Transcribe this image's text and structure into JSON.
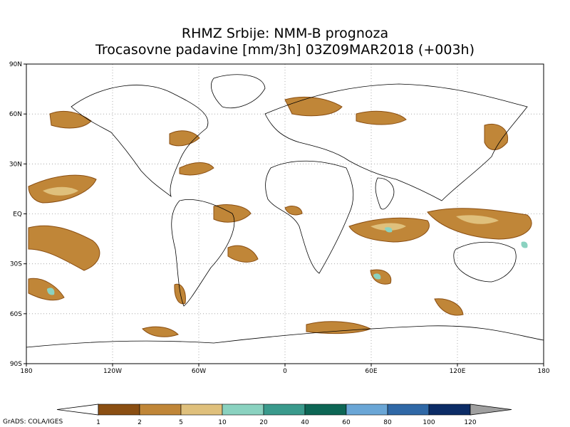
{
  "title": {
    "line1": "RHMZ Srbije: NMM-B prognoza",
    "line2": "Trocasovne padavine [mm/3h] 03Z09MAR2018 (+003h)"
  },
  "map": {
    "projection": "lat-lon",
    "lon_range": [
      -180,
      180
    ],
    "lat_range": [
      -90,
      90
    ],
    "grid": "dotted",
    "x_ticks": [
      {
        "lon": -180,
        "label": "180"
      },
      {
        "lon": -120,
        "label": "120W"
      },
      {
        "lon": -60,
        "label": "60W"
      },
      {
        "lon": 0,
        "label": "0"
      },
      {
        "lon": 60,
        "label": "60E"
      },
      {
        "lon": 120,
        "label": "120E"
      },
      {
        "lon": 180,
        "label": "180"
      }
    ],
    "y_ticks": [
      {
        "lat": 90,
        "label": "90N"
      },
      {
        "lat": 60,
        "label": "60N"
      },
      {
        "lat": 30,
        "label": "30N"
      },
      {
        "lat": 0,
        "label": "EQ"
      },
      {
        "lat": -30,
        "label": "30S"
      },
      {
        "lat": -60,
        "label": "60S"
      },
      {
        "lat": -90,
        "label": "90S"
      }
    ],
    "colors": {
      "coast": "#000000",
      "grid": "#9a9a9a"
    }
  },
  "colorbar": {
    "labels": [
      "1",
      "2",
      "5",
      "10",
      "20",
      "40",
      "60",
      "80",
      "100",
      "120"
    ],
    "colors": [
      "#ffffff",
      "#8a4e12",
      "#c08638",
      "#dfc07c",
      "#8ad2c0",
      "#3a9a8c",
      "#0d6655",
      "#6aa6d6",
      "#2f68a6",
      "#0c2c66",
      "#a0a0a0"
    ]
  },
  "credit": "GrADS: COLA/IGES"
}
